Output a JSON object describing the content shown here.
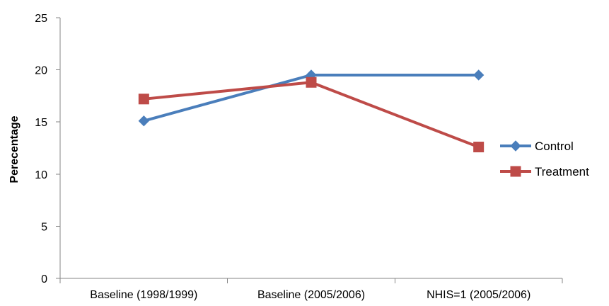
{
  "chart_data": {
    "type": "line",
    "title": "",
    "xlabel": "",
    "ylabel": "Perecentage",
    "categories": [
      "Baseline (1998/1999)",
      "Baseline (2005/2006)",
      "NHIS=1 (2005/2006)"
    ],
    "ylim": [
      0,
      25
    ],
    "yticks": [
      0,
      5,
      10,
      15,
      20,
      25
    ],
    "grid": false,
    "legend_position": "right",
    "series": [
      {
        "name": "Control",
        "values": [
          15.1,
          19.5,
          19.5
        ],
        "color": "#4a7ebb",
        "marker": "diamond"
      },
      {
        "name": "Treatment",
        "values": [
          17.2,
          18.8,
          12.6
        ],
        "color": "#be4b48",
        "marker": "square"
      }
    ]
  }
}
